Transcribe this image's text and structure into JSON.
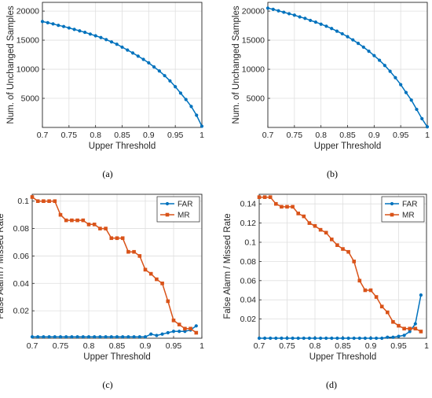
{
  "colors": {
    "far": "#0072BD",
    "mr": "#D95319",
    "grid": "#dfdfdf",
    "axis": "#262626"
  },
  "chart_data": [
    {
      "type": "line",
      "panel_label": "(a)",
      "xlabel": "Upper Threshold",
      "ylabel": "Num. of Unchanged Samples",
      "xlim": [
        0.7,
        1.0
      ],
      "ylim": [
        0,
        21500
      ],
      "xticks": [
        "0.7",
        "0.75",
        "0.8",
        "0.85",
        "0.9",
        "0.95",
        "1"
      ],
      "yticks": [
        "5000",
        "10000",
        "15000",
        "20000"
      ],
      "grid": true,
      "legend": "none",
      "series": [
        {
          "x": [
            0.7,
            0.71,
            0.72,
            0.73,
            0.74,
            0.75,
            0.76,
            0.77,
            0.78,
            0.79,
            0.8,
            0.81,
            0.82,
            0.83,
            0.84,
            0.85,
            0.86,
            0.87,
            0.88,
            0.89,
            0.9,
            0.91,
            0.92,
            0.93,
            0.94,
            0.95,
            0.96,
            0.97,
            0.98,
            0.99,
            1.0
          ],
          "values": [
            18200,
            18000,
            17800,
            17550,
            17350,
            17100,
            16850,
            16600,
            16350,
            16050,
            15750,
            15450,
            15100,
            14700,
            14300,
            13800,
            13300,
            12800,
            12250,
            11700,
            11100,
            10400,
            9700,
            8900,
            8000,
            7000,
            5900,
            4800,
            3600,
            2100,
            200
          ]
        }
      ]
    },
    {
      "type": "line",
      "panel_label": "(b)",
      "xlabel": "Upper Threshold",
      "ylabel": "Num. of Unchanged Samples",
      "xlim": [
        0.7,
        1.0
      ],
      "ylim": [
        0,
        21500
      ],
      "xticks": [
        "0.7",
        "0.75",
        "0.8",
        "0.85",
        "0.9",
        "0.95",
        "1"
      ],
      "yticks": [
        "5000",
        "10000",
        "15000",
        "20000"
      ],
      "grid": true,
      "legend": "none",
      "series": [
        {
          "x": [
            0.7,
            0.71,
            0.72,
            0.73,
            0.74,
            0.75,
            0.76,
            0.77,
            0.78,
            0.79,
            0.8,
            0.81,
            0.82,
            0.83,
            0.84,
            0.85,
            0.86,
            0.87,
            0.88,
            0.89,
            0.9,
            0.91,
            0.92,
            0.93,
            0.94,
            0.95,
            0.96,
            0.97,
            0.98,
            0.99,
            1.0
          ],
          "values": [
            20500,
            20300,
            20050,
            19800,
            19550,
            19300,
            19000,
            18750,
            18400,
            18100,
            17750,
            17400,
            17000,
            16550,
            16100,
            15600,
            15050,
            14450,
            13800,
            13100,
            12350,
            11550,
            10650,
            9650,
            8550,
            7350,
            6000,
            4700,
            3100,
            1500,
            100
          ]
        }
      ]
    },
    {
      "type": "line",
      "panel_label": "(c)",
      "xlabel": "Upper Threshold",
      "ylabel": "False Alarm / Missed Rate",
      "xlim": [
        0.7,
        1.0
      ],
      "ylim": [
        0,
        0.105
      ],
      "xticks": [
        "0.7",
        "0.75",
        "0.8",
        "0.85",
        "0.9",
        "0.95",
        "1"
      ],
      "yticks": [
        "0.02",
        "0.04",
        "0.06",
        "0.08",
        "0.1"
      ],
      "grid": true,
      "legend": "top-right",
      "series": [
        {
          "name": "FAR",
          "color": "far",
          "marker": "circle",
          "x": [
            0.7,
            0.71,
            0.72,
            0.73,
            0.74,
            0.75,
            0.76,
            0.77,
            0.78,
            0.79,
            0.8,
            0.81,
            0.82,
            0.83,
            0.84,
            0.85,
            0.86,
            0.87,
            0.88,
            0.89,
            0.9,
            0.91,
            0.92,
            0.93,
            0.94,
            0.95,
            0.96,
            0.97,
            0.98,
            0.99
          ],
          "values": [
            0.001,
            0.001,
            0.001,
            0.001,
            0.001,
            0.001,
            0.001,
            0.001,
            0.001,
            0.001,
            0.001,
            0.001,
            0.001,
            0.001,
            0.001,
            0.001,
            0.001,
            0.001,
            0.001,
            0.001,
            0.001,
            0.003,
            0.002,
            0.003,
            0.004,
            0.005,
            0.005,
            0.005,
            0.006,
            0.009
          ]
        },
        {
          "name": "MR",
          "color": "mr",
          "marker": "square",
          "x": [
            0.7,
            0.71,
            0.72,
            0.73,
            0.74,
            0.75,
            0.76,
            0.77,
            0.78,
            0.79,
            0.8,
            0.81,
            0.82,
            0.83,
            0.84,
            0.85,
            0.86,
            0.87,
            0.88,
            0.89,
            0.9,
            0.91,
            0.92,
            0.93,
            0.94,
            0.95,
            0.96,
            0.97,
            0.98,
            0.99
          ],
          "values": [
            0.103,
            0.1,
            0.1,
            0.1,
            0.1,
            0.09,
            0.086,
            0.086,
            0.086,
            0.086,
            0.083,
            0.083,
            0.08,
            0.08,
            0.073,
            0.073,
            0.073,
            0.063,
            0.063,
            0.06,
            0.05,
            0.047,
            0.043,
            0.04,
            0.027,
            0.013,
            0.01,
            0.007,
            0.007,
            0.004
          ]
        }
      ]
    },
    {
      "type": "line",
      "panel_label": "(d)",
      "xlabel": "Upper Threshold",
      "ylabel": "False Alarm / Missed Rate",
      "xlim": [
        0.7,
        1.0
      ],
      "ylim": [
        0,
        0.15
      ],
      "xticks": [
        "0.7",
        "0.75",
        "0.8",
        "0.85",
        "0.9",
        "0.95",
        "1"
      ],
      "yticks": [
        "0.02",
        "0.04",
        "0.06",
        "0.08",
        "0.1",
        "0.12",
        "0.14"
      ],
      "grid": true,
      "legend": "top-right",
      "series": [
        {
          "name": "FAR",
          "color": "far",
          "marker": "circle",
          "x": [
            0.7,
            0.71,
            0.72,
            0.73,
            0.74,
            0.75,
            0.76,
            0.77,
            0.78,
            0.79,
            0.8,
            0.81,
            0.82,
            0.83,
            0.84,
            0.85,
            0.86,
            0.87,
            0.88,
            0.89,
            0.9,
            0.91,
            0.92,
            0.93,
            0.94,
            0.95,
            0.96,
            0.97,
            0.98,
            0.99
          ],
          "values": [
            0.0,
            0.0,
            0.0,
            0.0,
            0.0,
            0.0,
            0.0,
            0.0,
            0.0,
            0.0,
            0.0,
            0.0,
            0.0,
            0.0,
            0.0,
            0.0,
            0.0,
            0.0,
            0.0,
            0.0,
            0.0,
            0.0,
            0.0,
            0.001,
            0.001,
            0.002,
            0.003,
            0.007,
            0.015,
            0.045
          ]
        },
        {
          "name": "MR",
          "color": "mr",
          "marker": "square",
          "x": [
            0.7,
            0.71,
            0.72,
            0.73,
            0.74,
            0.75,
            0.76,
            0.77,
            0.78,
            0.79,
            0.8,
            0.81,
            0.82,
            0.83,
            0.84,
            0.85,
            0.86,
            0.87,
            0.88,
            0.89,
            0.9,
            0.91,
            0.92,
            0.93,
            0.94,
            0.95,
            0.96,
            0.97,
            0.98,
            0.99
          ],
          "values": [
            0.147,
            0.147,
            0.147,
            0.14,
            0.137,
            0.137,
            0.137,
            0.13,
            0.127,
            0.12,
            0.117,
            0.113,
            0.11,
            0.103,
            0.097,
            0.093,
            0.09,
            0.08,
            0.06,
            0.05,
            0.05,
            0.043,
            0.033,
            0.027,
            0.017,
            0.013,
            0.01,
            0.01,
            0.01,
            0.007
          ]
        }
      ]
    }
  ]
}
